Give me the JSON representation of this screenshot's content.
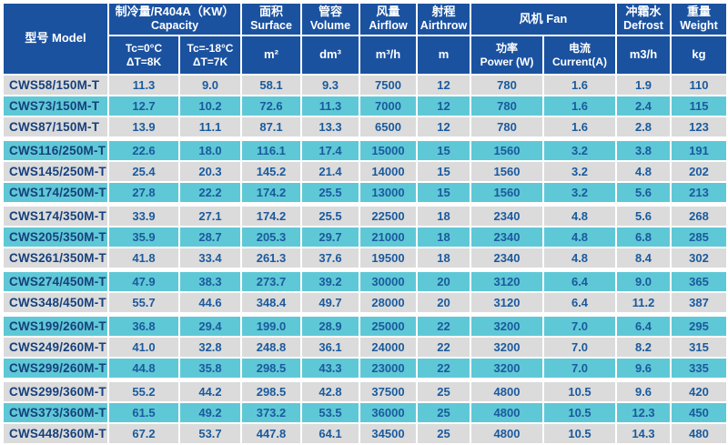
{
  "table": {
    "header": {
      "model": "型号 Model",
      "capacity_group_zh": "制冷量/R404A（KW）",
      "capacity_group_en": "Capacity",
      "capacity_tc0_line1": "Tc=0°C",
      "capacity_tc0_line2": "ΔT=8K",
      "capacity_tc18_line1": "Tc=-18°C",
      "capacity_tc18_line2": "ΔT=7K",
      "surface_zh": "面积",
      "surface_en": "Surface",
      "surface_unit": "m²",
      "volume_zh": "管容",
      "volume_en": "Volume",
      "volume_unit": "dm³",
      "airflow_zh": "风量",
      "airflow_en": "Airflow",
      "airflow_unit": "m³/h",
      "airthrow_zh": "射程",
      "airthrow_en": "Airthrow",
      "airthrow_unit": "m",
      "fan_group": "风机 Fan",
      "fan_power_line1": "功率",
      "fan_power_line2": "Power (W)",
      "fan_current_line1": "电流",
      "fan_current_line2": "Current(A)",
      "defrost_zh": "冲霜水",
      "defrost_en": "Defrost",
      "defrost_unit": "m3/h",
      "weight_zh": "重量",
      "weight_en": "Weight",
      "weight_unit": "kg"
    },
    "rows": [
      {
        "model": "CWS58/150M-T",
        "capacity_tc0": "11.3",
        "capacity_tc18": "9.0",
        "surface": "58.1",
        "volume": "9.3",
        "airflow": "7500",
        "airthrow": "12",
        "fan_power": "780",
        "fan_current": "1.6",
        "defrost": "1.9",
        "weight": "110"
      },
      {
        "model": "CWS73/150M-T",
        "capacity_tc0": "12.7",
        "capacity_tc18": "10.2",
        "surface": "72.6",
        "volume": "11.3",
        "airflow": "7000",
        "airthrow": "12",
        "fan_power": "780",
        "fan_current": "1.6",
        "defrost": "2.4",
        "weight": "115"
      },
      {
        "model": "CWS87/150M-T",
        "capacity_tc0": "13.9",
        "capacity_tc18": "11.1",
        "surface": "87.1",
        "volume": "13.3",
        "airflow": "6500",
        "airthrow": "12",
        "fan_power": "780",
        "fan_current": "1.6",
        "defrost": "2.8",
        "weight": "123"
      },
      {
        "model": "CWS116/250M-T",
        "capacity_tc0": "22.6",
        "capacity_tc18": "18.0",
        "surface": "116.1",
        "volume": "17.4",
        "airflow": "15000",
        "airthrow": "15",
        "fan_power": "1560",
        "fan_current": "3.2",
        "defrost": "3.8",
        "weight": "191"
      },
      {
        "model": "CWS145/250M-T",
        "capacity_tc0": "25.4",
        "capacity_tc18": "20.3",
        "surface": "145.2",
        "volume": "21.4",
        "airflow": "14000",
        "airthrow": "15",
        "fan_power": "1560",
        "fan_current": "3.2",
        "defrost": "4.8",
        "weight": "202"
      },
      {
        "model": "CWS174/250M-T",
        "capacity_tc0": "27.8",
        "capacity_tc18": "22.2",
        "surface": "174.2",
        "volume": "25.5",
        "airflow": "13000",
        "airthrow": "15",
        "fan_power": "1560",
        "fan_current": "3.2",
        "defrost": "5.6",
        "weight": "213"
      },
      {
        "model": "CWS174/350M-T",
        "capacity_tc0": "33.9",
        "capacity_tc18": "27.1",
        "surface": "174.2",
        "volume": "25.5",
        "airflow": "22500",
        "airthrow": "18",
        "fan_power": "2340",
        "fan_current": "4.8",
        "defrost": "5.6",
        "weight": "268"
      },
      {
        "model": "CWS205/350M-T",
        "capacity_tc0": "35.9",
        "capacity_tc18": "28.7",
        "surface": "205.3",
        "volume": "29.7",
        "airflow": "21000",
        "airthrow": "18",
        "fan_power": "2340",
        "fan_current": "4.8",
        "defrost": "6.8",
        "weight": "285"
      },
      {
        "model": "CWS261/350M-T",
        "capacity_tc0": "41.8",
        "capacity_tc18": "33.4",
        "surface": "261.3",
        "volume": "37.6",
        "airflow": "19500",
        "airthrow": "18",
        "fan_power": "2340",
        "fan_current": "4.8",
        "defrost": "8.4",
        "weight": "302"
      },
      {
        "model": "CWS274/450M-T",
        "capacity_tc0": "47.9",
        "capacity_tc18": "38.3",
        "surface": "273.7",
        "volume": "39.2",
        "airflow": "30000",
        "airthrow": "20",
        "fan_power": "3120",
        "fan_current": "6.4",
        "defrost": "9.0",
        "weight": "365"
      },
      {
        "model": "CWS348/450M-T",
        "capacity_tc0": "55.7",
        "capacity_tc18": "44.6",
        "surface": "348.4",
        "volume": "49.7",
        "airflow": "28000",
        "airthrow": "20",
        "fan_power": "3120",
        "fan_current": "6.4",
        "defrost": "11.2",
        "weight": "387"
      },
      {
        "model": "CWS199/260M-T",
        "capacity_tc0": "36.8",
        "capacity_tc18": "29.4",
        "surface": "199.0",
        "volume": "28.9",
        "airflow": "25000",
        "airthrow": "22",
        "fan_power": "3200",
        "fan_current": "7.0",
        "defrost": "6.4",
        "weight": "295"
      },
      {
        "model": "CWS249/260M-T",
        "capacity_tc0": "41.0",
        "capacity_tc18": "32.8",
        "surface": "248.8",
        "volume": "36.1",
        "airflow": "24000",
        "airthrow": "22",
        "fan_power": "3200",
        "fan_current": "7.0",
        "defrost": "8.2",
        "weight": "315"
      },
      {
        "model": "CWS299/260M-T",
        "capacity_tc0": "44.8",
        "capacity_tc18": "35.8",
        "surface": "298.5",
        "volume": "43.3",
        "airflow": "23000",
        "airthrow": "22",
        "fan_power": "3200",
        "fan_current": "7.0",
        "defrost": "9.6",
        "weight": "335"
      },
      {
        "model": "CWS299/360M-T",
        "capacity_tc0": "55.2",
        "capacity_tc18": "44.2",
        "surface": "298.5",
        "volume": "42.8",
        "airflow": "37500",
        "airthrow": "25",
        "fan_power": "4800",
        "fan_current": "10.5",
        "defrost": "9.6",
        "weight": "420"
      },
      {
        "model": "CWS373/360M-T",
        "capacity_tc0": "61.5",
        "capacity_tc18": "49.2",
        "surface": "373.2",
        "volume": "53.5",
        "airflow": "36000",
        "airthrow": "25",
        "fan_power": "4800",
        "fan_current": "10.5",
        "defrost": "12.3",
        "weight": "450"
      },
      {
        "model": "CWS448/360M-T",
        "capacity_tc0": "67.2",
        "capacity_tc18": "53.7",
        "surface": "447.8",
        "volume": "64.1",
        "airflow": "34500",
        "airthrow": "25",
        "fan_power": "4800",
        "fan_current": "10.5",
        "defrost": "14.3",
        "weight": "480"
      }
    ]
  },
  "colors": {
    "header_bg": "#1b52a0",
    "row_teal": "#5fc8d6",
    "row_gray": "#dbdbdb",
    "value_text": "#1a5a9e",
    "model_text": "#16407c",
    "grid": "#ffffff"
  }
}
